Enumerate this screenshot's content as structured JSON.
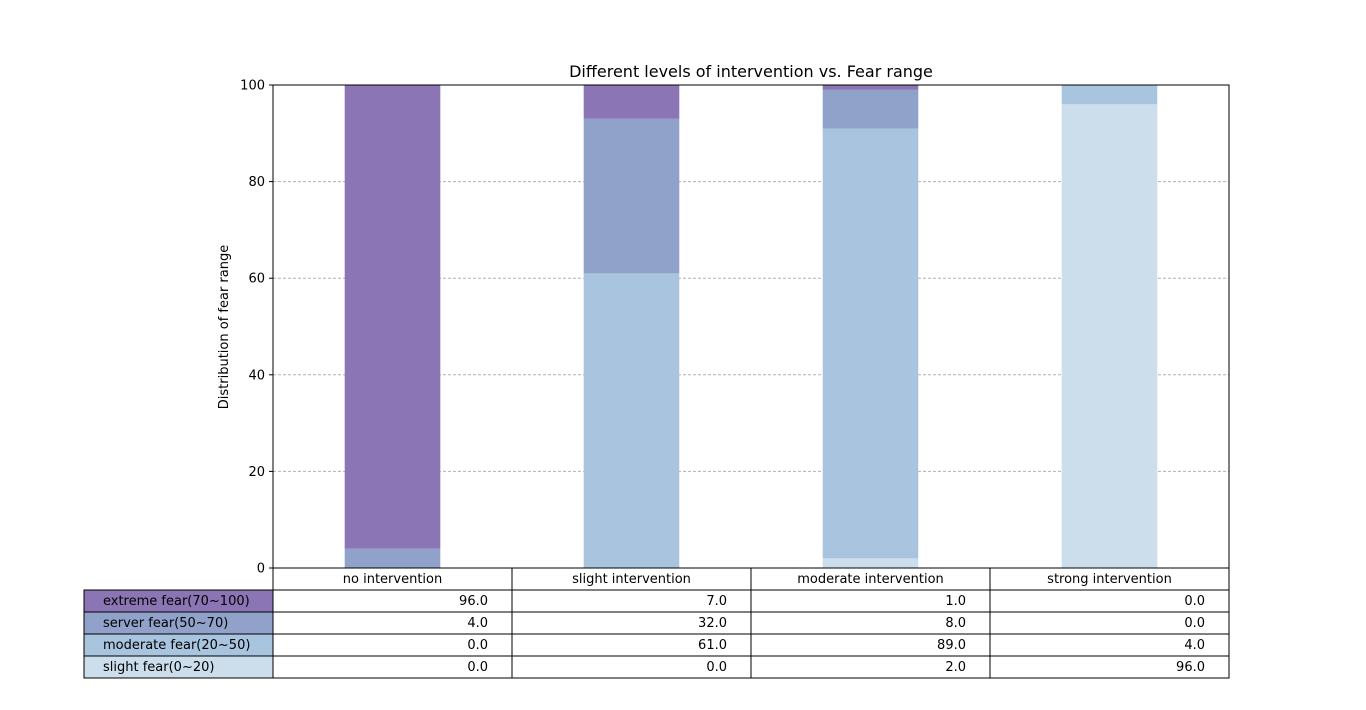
{
  "chart_data": {
    "type": "bar",
    "stacked": true,
    "title": "Different levels of intervention vs. Fear range",
    "xlabel": "",
    "ylabel": "Distribution of fear range",
    "ylim": [
      0,
      100
    ],
    "yticks": [
      0,
      20,
      40,
      60,
      80,
      100
    ],
    "grid": {
      "y": true,
      "style": "dashed"
    },
    "categories": [
      "no intervention",
      "slight intervention",
      "moderate intervention",
      "strong intervention"
    ],
    "series": [
      {
        "name": "extreme fear(70~100)",
        "color": "#8c75b5",
        "values": [
          96.0,
          7.0,
          1.0,
          0.0
        ],
        "display": [
          "96.0",
          "7.0",
          "1.0",
          "0.0"
        ]
      },
      {
        "name": "server fear(50~70)",
        "color": "#90a1ca",
        "values": [
          4.0,
          32.0,
          8.0,
          0.0
        ],
        "display": [
          "4.0",
          "32.0",
          "8.0",
          "0.0"
        ]
      },
      {
        "name": "moderate fear(20~50)",
        "color": "#a9c4de",
        "values": [
          0.0,
          61.0,
          89.0,
          4.0
        ],
        "display": [
          "0.0",
          "61.0",
          "89.0",
          "4.0"
        ]
      },
      {
        "name": "slight fear(0~20)",
        "color": "#ccdeec",
        "values": [
          0.0,
          0.0,
          2.0,
          96.0
        ],
        "display": [
          "0.0",
          "0.0",
          "2.0",
          "96.0"
        ]
      }
    ]
  }
}
